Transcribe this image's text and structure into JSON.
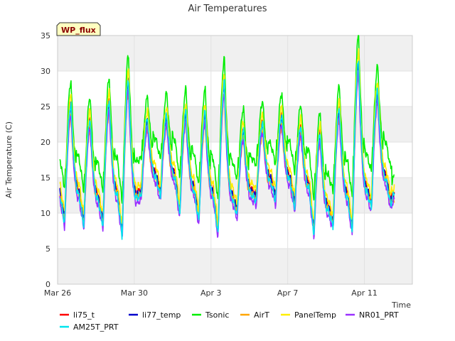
{
  "chart_data": {
    "type": "line",
    "title": "Air Temperatures",
    "xlabel": "Time",
    "ylabel": "Air Temperature (C)",
    "badge": "WP_flux",
    "ylim": [
      0,
      35
    ],
    "xlim": [
      0,
      18.5
    ],
    "yticks": [
      0,
      5,
      10,
      15,
      20,
      25,
      30,
      35
    ],
    "xticks": [
      {
        "value": 0,
        "label": "Mar 26"
      },
      {
        "value": 4,
        "label": "Mar 30"
      },
      {
        "value": 8,
        "label": "Apr 3"
      },
      {
        "value": 12,
        "label": "Apr 7"
      },
      {
        "value": 16,
        "label": "Apr 11"
      }
    ],
    "grid": true,
    "bands": "alternating grey bands every 5 units",
    "legend_position": "bottom",
    "days": [
      {
        "day": 0,
        "min": 8.8,
        "max": 25.0
      },
      {
        "day": 1,
        "min": 8.5,
        "max": 23.0
      },
      {
        "day": 2,
        "min": 8.5,
        "max": 25.5
      },
      {
        "day": 3,
        "min": 7.0,
        "max": 28.5
      },
      {
        "day": 4,
        "min": 12.8,
        "max": 23.0
      },
      {
        "day": 5,
        "min": 12.5,
        "max": 23.5
      },
      {
        "day": 6,
        "min": 10.0,
        "max": 24.0
      },
      {
        "day": 7,
        "min": 9.0,
        "max": 24.0
      },
      {
        "day": 8,
        "min": 7.2,
        "max": 28.0
      },
      {
        "day": 9,
        "min": 10.0,
        "max": 21.5
      },
      {
        "day": 10,
        "min": 12.0,
        "max": 22.5
      },
      {
        "day": 11,
        "min": 12.0,
        "max": 23.5
      },
      {
        "day": 12,
        "min": 11.0,
        "max": 22.0
      },
      {
        "day": 13,
        "min": 7.2,
        "max": 21.0
      },
      {
        "day": 14,
        "min": 8.5,
        "max": 24.5
      },
      {
        "day": 15,
        "min": 7.5,
        "max": 31.0
      },
      {
        "day": 16,
        "min": 11.0,
        "max": 27.0
      },
      {
        "day": 17,
        "min": 11.5,
        "max": 13.0
      }
    ],
    "series": [
      {
        "name": "li75_t",
        "color": "#ff0000",
        "offset": 0.2,
        "amp": 1.0,
        "floor": 0.4
      },
      {
        "name": "li77_temp",
        "color": "#0000cc",
        "offset": 0.0,
        "amp": 1.0,
        "floor": 0.3
      },
      {
        "name": "Tsonic",
        "color": "#00ee00",
        "offset": 1.5,
        "amp": 1.08,
        "floor": 3.0
      },
      {
        "name": "AirT",
        "color": "#ffa500",
        "offset": 0.0,
        "amp": 0.95,
        "floor": 0.6
      },
      {
        "name": "PanelTemp",
        "color": "#ffee00",
        "offset": 0.5,
        "amp": 1.04,
        "floor": 0.4
      },
      {
        "name": "NR01_PRT",
        "color": "#9b30ff",
        "offset": -0.4,
        "amp": 0.97,
        "floor": -0.2
      },
      {
        "name": "AM25T_PRT",
        "color": "#00e5ee",
        "offset": -0.2,
        "amp": 1.02,
        "floor": -0.4
      }
    ]
  }
}
